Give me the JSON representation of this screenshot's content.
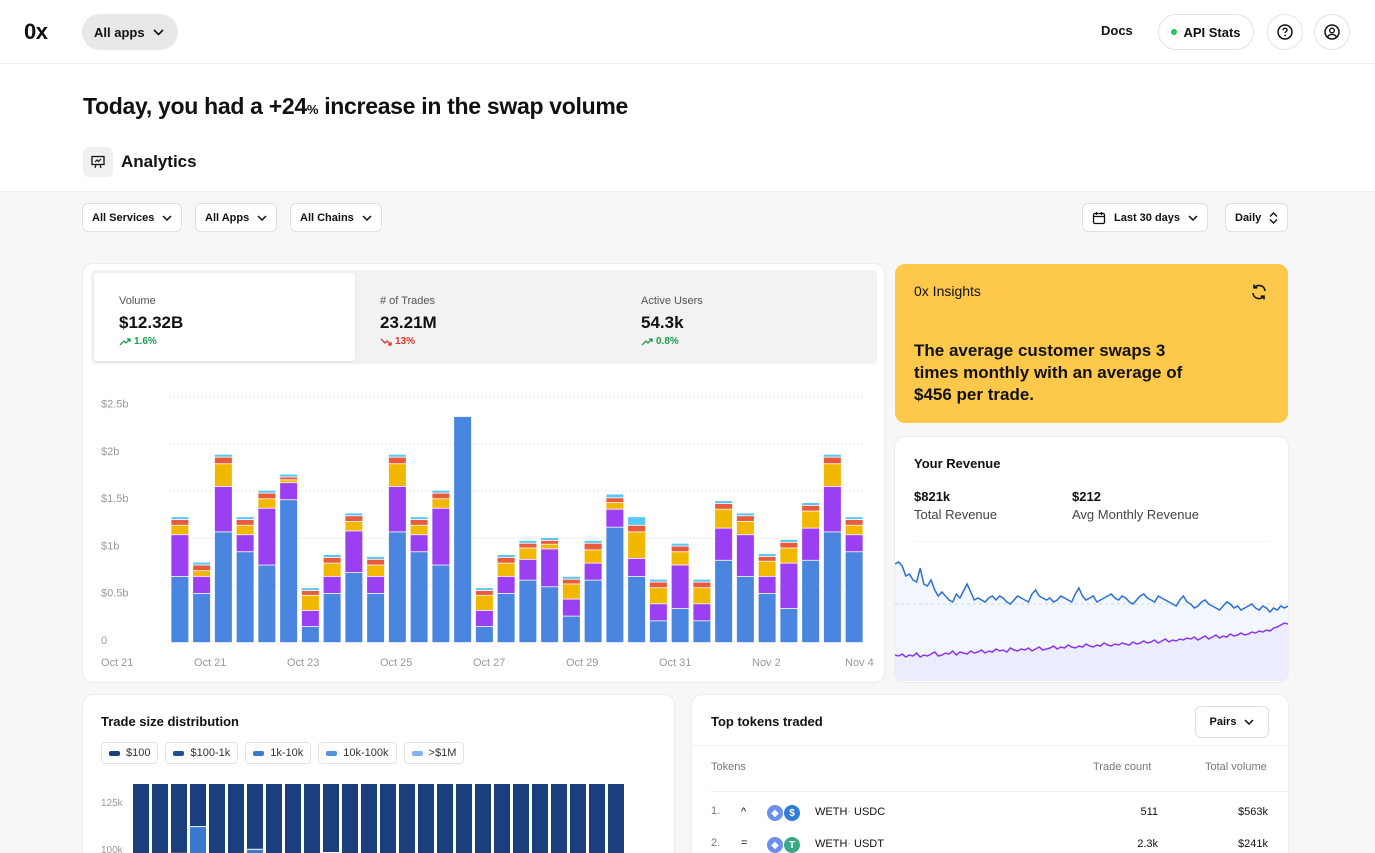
{
  "app": {
    "logo": "0x",
    "apps_selector": "All apps",
    "docs": "Docs",
    "api_stats": "API Stats"
  },
  "headline": {
    "prefix": "Today, you had a +24",
    "pct_symbol": "%",
    "suffix": " increase in the swap volume"
  },
  "section_title": "Analytics",
  "filters": {
    "services": "All Services",
    "apps": "All Apps",
    "chains": "All Chains",
    "date_range": "Last 30 days",
    "granularity": "Daily"
  },
  "metrics": [
    {
      "label": "Volume",
      "value": "$12.32B",
      "change": "1.6%",
      "direction": "up"
    },
    {
      "label": "# of Trades",
      "value": "23.21M",
      "change": "13%",
      "direction": "down"
    },
    {
      "label": "Active Users",
      "value": "54.3k",
      "change": "0.8%",
      "direction": "up"
    }
  ],
  "insights": {
    "title": "0x Insights",
    "text": "The average customer swaps 3 times monthly with an average of $456 per trade."
  },
  "revenue": {
    "title": "Your Revenue",
    "total_value": "$821k",
    "total_label": "Total Revenue",
    "avg_value": "$212",
    "avg_label": "Avg Monthly Revenue",
    "chart_data": {
      "type": "line",
      "series": [
        {
          "name": "blue",
          "color": "#2a6fd6",
          "values": [
            72,
            74,
            70,
            60,
            62,
            56,
            54,
            68,
            52,
            50,
            56,
            46,
            40,
            44,
            40,
            36,
            34,
            42,
            38,
            45,
            52,
            44,
            36,
            38,
            36,
            34,
            38,
            40,
            36,
            40,
            38,
            34,
            32,
            36,
            40,
            38,
            36,
            34,
            42,
            46,
            40,
            38,
            36,
            38,
            34,
            36,
            40,
            38,
            36,
            34,
            42,
            48,
            40,
            36,
            38,
            40,
            34,
            36,
            38,
            40,
            42,
            38,
            36,
            40,
            38,
            34,
            32,
            36,
            40,
            42,
            38,
            36,
            34,
            40,
            38,
            36,
            34,
            32,
            30,
            36,
            40,
            34,
            32,
            28,
            30,
            34,
            36,
            32,
            30,
            28,
            26,
            30,
            34,
            32,
            28,
            30,
            26,
            28,
            30,
            32,
            28,
            26,
            30,
            28,
            24,
            28,
            26,
            30,
            28,
            30
          ]
        },
        {
          "name": "purple",
          "color": "#8a34f0",
          "values": [
            6,
            5,
            7,
            4,
            6,
            5,
            8,
            4,
            6,
            5,
            7,
            9,
            5,
            6,
            8,
            7,
            10,
            6,
            9,
            8,
            7,
            10,
            8,
            9,
            11,
            8,
            10,
            9,
            12,
            10,
            11,
            9,
            13,
            11,
            10,
            12,
            11,
            13,
            10,
            12,
            14,
            11,
            12,
            13,
            15,
            12,
            14,
            13,
            16,
            14,
            13,
            15,
            14,
            17,
            15,
            14,
            16,
            15,
            18,
            16,
            15,
            17,
            16,
            18,
            17,
            16,
            19,
            17,
            18,
            20,
            18,
            19,
            21,
            18,
            20,
            22,
            19,
            21,
            20,
            22,
            21,
            23,
            22,
            24,
            21,
            23,
            25,
            22,
            24,
            26,
            23,
            25,
            24,
            27,
            25,
            26,
            28,
            26,
            27,
            29,
            28,
            30,
            29,
            31,
            30,
            33,
            34,
            36,
            38,
            37
          ]
        }
      ]
    }
  },
  "volume_chart": {
    "chart_data": {
      "type": "bar",
      "stacked": true,
      "ylim": [
        0,
        2.6
      ],
      "y_ticks": [
        "0",
        "$0.5b",
        "$1b",
        "$1.5b",
        "$2b",
        "$2.5b"
      ],
      "x_tick_labels": [
        "Oct 21",
        "Oct 21",
        "Oct 23",
        "Oct 25",
        "Oct 27",
        "Oct 29",
        "Oct 31",
        "Nov 2",
        "Nov 4"
      ],
      "series_colors": [
        "#4a86e0",
        "#9b3ff2",
        "#f2b800",
        "#ea5a3c",
        "#57c7f5"
      ],
      "bars": [
        [
          0.7,
          0.44,
          0.1,
          0.06,
          0.03
        ],
        [
          0.52,
          0.18,
          0.06,
          0.06,
          0.03
        ],
        [
          1.17,
          0.48,
          0.24,
          0.07,
          0.03
        ],
        [
          0.96,
          0.18,
          0.1,
          0.06,
          0.03
        ],
        [
          0.82,
          0.6,
          0.1,
          0.06,
          0.03
        ],
        [
          1.51,
          0.18,
          0.03,
          0.03,
          0.03
        ],
        [
          0.17,
          0.17,
          0.16,
          0.05,
          0.03
        ],
        [
          0.52,
          0.18,
          0.14,
          0.06,
          0.03
        ],
        [
          0.74,
          0.44,
          0.1,
          0.06,
          0.03
        ],
        [
          0.52,
          0.18,
          0.12,
          0.06,
          0.03
        ],
        [
          1.17,
          0.48,
          0.24,
          0.07,
          0.03
        ],
        [
          0.96,
          0.18,
          0.1,
          0.06,
          0.03
        ],
        [
          0.82,
          0.6,
          0.1,
          0.06,
          0.03
        ],
        [
          2.39,
          0.0,
          0.0,
          0.0,
          0.0
        ],
        [
          0.17,
          0.17,
          0.16,
          0.05,
          0.03
        ],
        [
          0.52,
          0.18,
          0.14,
          0.06,
          0.03
        ],
        [
          0.66,
          0.22,
          0.12,
          0.05,
          0.03
        ],
        [
          0.59,
          0.4,
          0.05,
          0.04,
          0.03
        ],
        [
          0.28,
          0.18,
          0.16,
          0.05,
          0.03
        ],
        [
          0.66,
          0.18,
          0.14,
          0.07,
          0.03
        ],
        [
          1.22,
          0.19,
          0.07,
          0.05,
          0.04
        ],
        [
          0.7,
          0.19,
          0.28,
          0.07,
          0.09
        ],
        [
          0.23,
          0.18,
          0.17,
          0.06,
          0.03
        ],
        [
          0.36,
          0.46,
          0.14,
          0.06,
          0.03
        ],
        [
          0.23,
          0.18,
          0.17,
          0.06,
          0.03
        ],
        [
          0.87,
          0.34,
          0.2,
          0.06,
          0.03
        ],
        [
          0.7,
          0.44,
          0.14,
          0.06,
          0.03
        ],
        [
          0.52,
          0.18,
          0.16,
          0.05,
          0.03
        ],
        [
          0.36,
          0.48,
          0.16,
          0.06,
          0.03
        ],
        [
          0.87,
          0.34,
          0.18,
          0.06,
          0.03
        ],
        [
          1.17,
          0.48,
          0.24,
          0.07,
          0.03
        ],
        [
          0.96,
          0.18,
          0.1,
          0.06,
          0.03
        ]
      ]
    }
  },
  "trade_size": {
    "title": "Trade size distribution",
    "legend": [
      {
        "label": "$100",
        "color": "#1a3f7c"
      },
      {
        "label": "$100-1k",
        "color": "#1f4f94"
      },
      {
        "label": "1k-10k",
        "color": "#3a79d0"
      },
      {
        "label": "10k-100k",
        "color": "#5592e0"
      },
      {
        "label": ">$1M",
        "color": "#82b0ee"
      }
    ],
    "chart_data": {
      "type": "bar",
      "y_ticks": [
        "125k",
        "100k"
      ],
      "bars": [
        [
          1.0,
          0.0
        ],
        [
          1.0,
          0.0
        ],
        [
          0.85,
          0.15
        ],
        [
          0.52,
          0.48
        ],
        [
          0.92,
          0.08
        ],
        [
          1.0,
          0.0
        ],
        [
          0.8,
          0.2
        ],
        [
          1.0,
          0.0
        ],
        [
          1.0,
          0.0
        ],
        [
          1.0,
          0.0
        ],
        [
          0.84,
          0.16
        ],
        [
          1.0,
          0.0
        ],
        [
          1.0,
          0.0
        ],
        [
          1.0,
          0.0
        ],
        [
          1.0,
          0.0
        ],
        [
          1.0,
          0.0
        ],
        [
          1.0,
          0.0
        ],
        [
          1.0,
          0.0
        ],
        [
          1.0,
          0.0
        ],
        [
          1.0,
          0.0
        ],
        [
          1.0,
          0.0
        ],
        [
          1.0,
          0.0
        ],
        [
          1.0,
          0.0
        ],
        [
          1.0,
          0.0
        ],
        [
          1.0,
          0.0
        ],
        [
          0.88,
          0.12
        ]
      ]
    }
  },
  "top_tokens": {
    "title": "Top tokens traded",
    "pairs_btn": "Pairs",
    "col_tokens": "Tokens",
    "col_count": "Trade count",
    "col_volume": "Total volume",
    "rows": [
      {
        "rank": "1.",
        "trend": "^",
        "a": "WETH",
        "b": "USDC",
        "count": "511",
        "volume": "$563k"
      },
      {
        "rank": "2.",
        "trend": "=",
        "a": "WETH",
        "b": "USDT",
        "count": "2.3k",
        "volume": "$241k"
      }
    ]
  }
}
